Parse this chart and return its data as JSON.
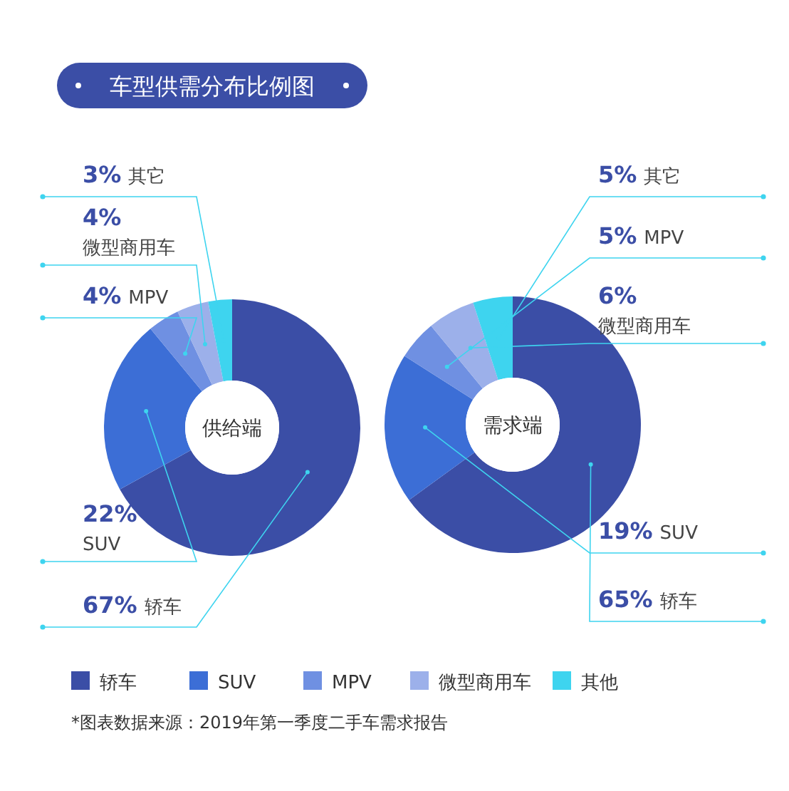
{
  "chart_data": [
    {
      "type": "donut",
      "title": "车型供需分布比例图",
      "subtitle": "供给端",
      "categories": [
        "轿车",
        "SUV",
        "MPV",
        "微型商用车",
        "其他"
      ],
      "values": [
        67,
        22,
        4,
        4,
        3
      ],
      "colors": [
        "#3b4ea6",
        "#3c6ed6",
        "#6f90e2",
        "#9cb0ea",
        "#3ed4ef"
      ],
      "value_labels": [
        "67% 轿车",
        "22% SUV",
        "4% MPV",
        "4% 微型商用车",
        "3% 其它"
      ],
      "legend": "bottom"
    },
    {
      "type": "donut",
      "subtitle": "需求端",
      "categories": [
        null,
        null,
        null,
        null,
        null
      ],
      "values": [
        65,
        19,
        5,
        6,
        5
      ],
      "colors": [
        "#3b4ea6",
        "#3c6ed6",
        "#6f90e2",
        "#9cb0ea",
        "#3ed4ef"
      ],
      "value_labels": [
        "65% 轿车",
        "19% SUV",
        "5% MPV",
        "6% 微型商用车",
        "5% 其它"
      ],
      "annotations": [
        "*图表数据来源：2019年第一季度二手车需求报告"
      ]
    }
  ]
}
